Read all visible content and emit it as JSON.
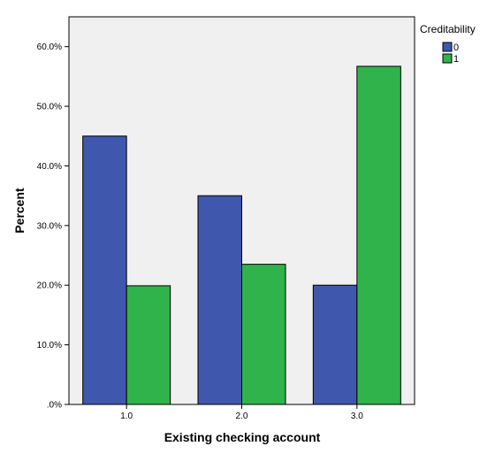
{
  "chart_data": {
    "type": "bar",
    "title": "",
    "xlabel": "Existing checking account",
    "ylabel": "Percent",
    "categories": [
      "1.0",
      "2.0",
      "3.0"
    ],
    "series": [
      {
        "name": "0",
        "values": [
          45.0,
          35.0,
          20.0
        ],
        "color": "#3f57ad"
      },
      {
        "name": "1",
        "values": [
          19.9,
          23.5,
          56.7
        ],
        "color": "#2fb34a"
      }
    ],
    "ylim": [
      0,
      65
    ],
    "yticks": [
      0,
      10,
      20,
      30,
      40,
      50,
      60
    ],
    "ytick_labels": [
      ".0%",
      "10.0%",
      "20.0%",
      "30.0%",
      "40.0%",
      "50.0%",
      "60.0%"
    ],
    "legend": {
      "title": "Creditability",
      "position": "top-right"
    },
    "grid": false,
    "plot_background": "#f0f0f0"
  }
}
